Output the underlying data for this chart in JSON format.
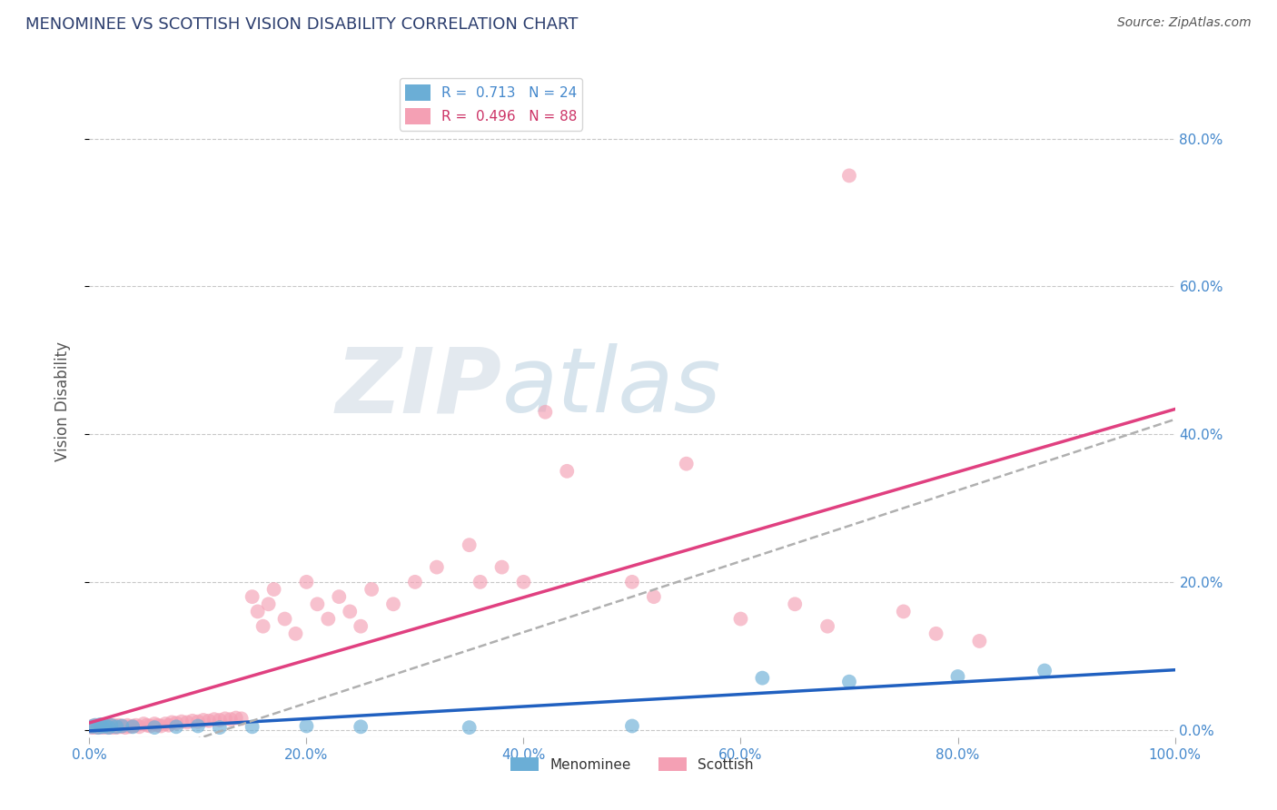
{
  "title": "MENOMINEE VS SCOTTISH VISION DISABILITY CORRELATION CHART",
  "source": "Source: ZipAtlas.com",
  "ylabel": "Vision Disability",
  "legend_items": [
    {
      "label": "R =  0.713   N = 24",
      "color": "#a8c8f0"
    },
    {
      "label": "R =  0.496   N = 88",
      "color": "#f4a0b8"
    }
  ],
  "menominee_scatter_x": [
    0.002,
    0.005,
    0.008,
    0.01,
    0.012,
    0.015,
    0.018,
    0.02,
    0.025,
    0.03,
    0.04,
    0.06,
    0.08,
    0.1,
    0.12,
    0.15,
    0.2,
    0.25,
    0.35,
    0.5,
    0.62,
    0.7,
    0.8,
    0.88
  ],
  "menominee_scatter_y": [
    0.004,
    0.006,
    0.003,
    0.007,
    0.004,
    0.005,
    0.003,
    0.006,
    0.004,
    0.005,
    0.004,
    0.003,
    0.004,
    0.005,
    0.003,
    0.004,
    0.005,
    0.004,
    0.003,
    0.005,
    0.07,
    0.065,
    0.072,
    0.08
  ],
  "scottish_scatter_x": [
    0.002,
    0.003,
    0.004,
    0.005,
    0.006,
    0.007,
    0.008,
    0.009,
    0.01,
    0.011,
    0.012,
    0.013,
    0.014,
    0.015,
    0.016,
    0.017,
    0.018,
    0.019,
    0.02,
    0.021,
    0.022,
    0.023,
    0.024,
    0.025,
    0.027,
    0.029,
    0.031,
    0.033,
    0.035,
    0.037,
    0.04,
    0.043,
    0.046,
    0.05,
    0.053,
    0.056,
    0.06,
    0.063,
    0.066,
    0.07,
    0.073,
    0.076,
    0.08,
    0.085,
    0.09,
    0.095,
    0.1,
    0.105,
    0.11,
    0.115,
    0.12,
    0.125,
    0.13,
    0.135,
    0.14,
    0.15,
    0.155,
    0.16,
    0.165,
    0.17,
    0.18,
    0.19,
    0.2,
    0.21,
    0.22,
    0.23,
    0.24,
    0.25,
    0.26,
    0.28,
    0.3,
    0.32,
    0.35,
    0.36,
    0.38,
    0.4,
    0.42,
    0.44,
    0.5,
    0.52,
    0.55,
    0.6,
    0.65,
    0.68,
    0.7,
    0.75,
    0.78,
    0.82
  ],
  "scottish_scatter_y": [
    0.003,
    0.005,
    0.004,
    0.003,
    0.006,
    0.004,
    0.005,
    0.003,
    0.006,
    0.004,
    0.005,
    0.003,
    0.006,
    0.004,
    0.005,
    0.003,
    0.006,
    0.004,
    0.005,
    0.003,
    0.006,
    0.004,
    0.005,
    0.003,
    0.006,
    0.004,
    0.005,
    0.003,
    0.006,
    0.004,
    0.005,
    0.006,
    0.004,
    0.008,
    0.006,
    0.005,
    0.008,
    0.006,
    0.005,
    0.008,
    0.006,
    0.01,
    0.009,
    0.011,
    0.01,
    0.012,
    0.011,
    0.013,
    0.012,
    0.014,
    0.013,
    0.015,
    0.014,
    0.016,
    0.015,
    0.18,
    0.16,
    0.14,
    0.17,
    0.19,
    0.15,
    0.13,
    0.2,
    0.17,
    0.15,
    0.18,
    0.16,
    0.14,
    0.19,
    0.17,
    0.2,
    0.22,
    0.25,
    0.2,
    0.22,
    0.2,
    0.43,
    0.35,
    0.2,
    0.18,
    0.36,
    0.15,
    0.17,
    0.14,
    0.75,
    0.16,
    0.13,
    0.12
  ],
  "menominee_color": "#6baed6",
  "scottish_color": "#f4a0b4",
  "menominee_line_color": "#2060c0",
  "scottish_line_color": "#e04080",
  "scottish_line_solid": true,
  "menominee_line_dashed": true,
  "background_color": "#ffffff",
  "grid_color": "#c8c8c8",
  "title_color": "#2c3e6e",
  "axis_tick_color": "#4488cc",
  "source_color": "#555555",
  "ylabel_color": "#555555",
  "watermark_text": "ZIP",
  "watermark_text2": "atlas",
  "xlim": [
    0.0,
    1.0
  ],
  "ylim": [
    -0.01,
    0.9
  ],
  "x_tick_vals": [
    0.0,
    0.2,
    0.4,
    0.6,
    0.8,
    1.0
  ],
  "x_tick_labels": [
    "0.0%",
    "20.0%",
    "40.0%",
    "60.0%",
    "80.0%",
    "100.0%"
  ],
  "y_tick_vals": [
    0.0,
    0.2,
    0.4,
    0.6,
    0.8
  ],
  "y_tick_labels": [
    "0.0%",
    "20.0%",
    "40.0%",
    "60.0%",
    "80.0%"
  ],
  "bottom_legend": [
    "Menominee",
    "Scottish"
  ]
}
